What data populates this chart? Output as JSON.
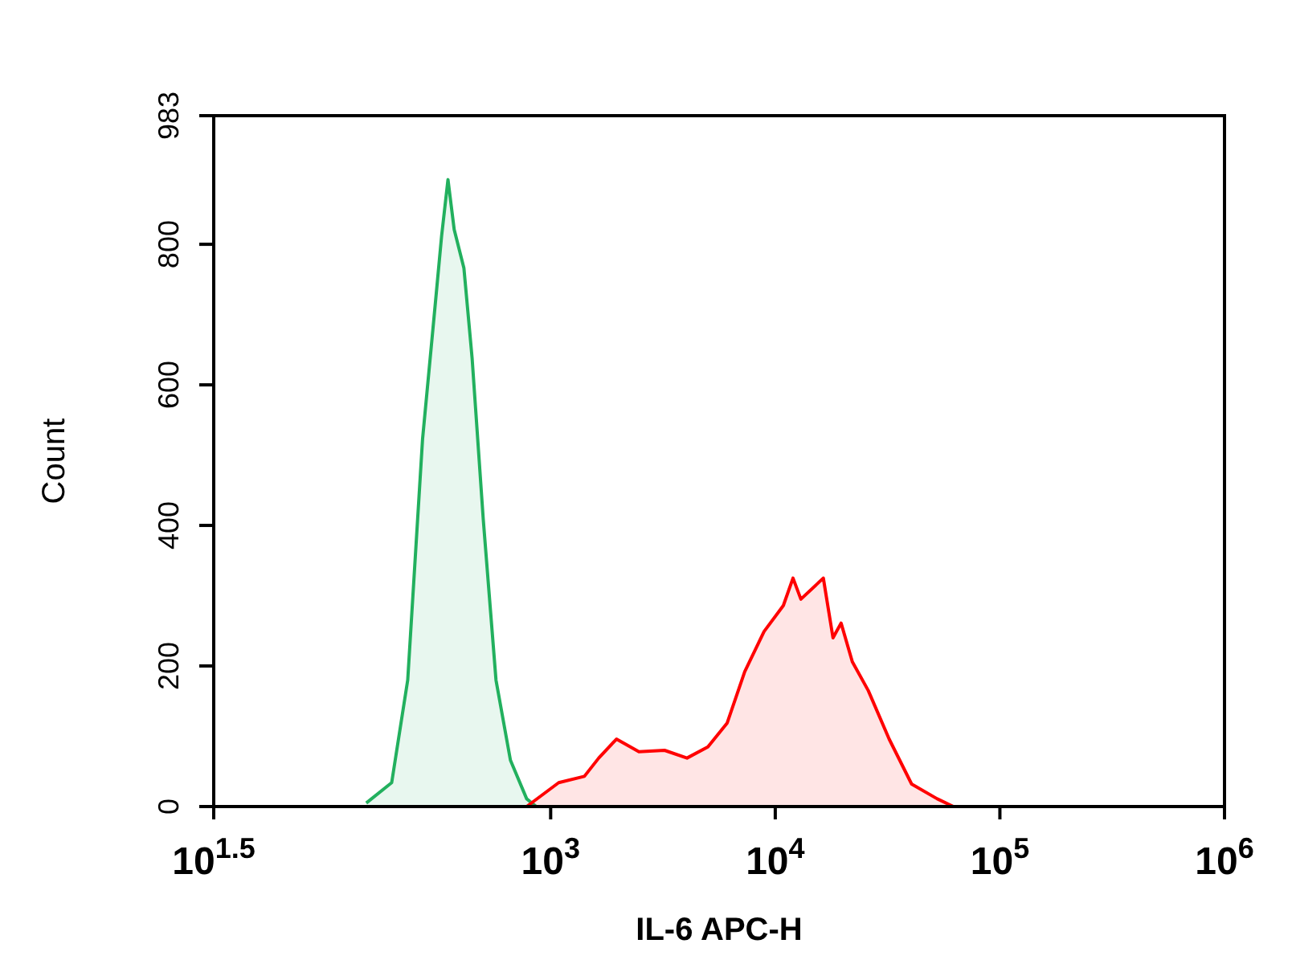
{
  "chart_data": {
    "type": "area",
    "xlabel": "IL-6 APC-H",
    "ylabel": "Count",
    "log": "x",
    "xlim": [
      31.62,
      1000000
    ],
    "ylim": [
      0,
      983
    ],
    "xticks": [
      {
        "value": 31.62,
        "label": "10$^{1.5}$"
      },
      {
        "value": 1000,
        "label": "10$^{3}$"
      },
      {
        "value": 10000,
        "label": "10$^{4}$"
      },
      {
        "value": 100000,
        "label": "10$^{5}$"
      },
      {
        "value": 1000000,
        "label": "10$^{6}$"
      }
    ],
    "yticks": [
      0,
      200,
      400,
      600,
      800,
      983
    ],
    "series": [
      {
        "color": "#22b05e",
        "x": [
          151,
          196,
          231,
          269,
          306,
          327,
          349,
          372,
          411,
          447,
          501,
          571,
          662,
          782,
          863
        ],
        "values": [
          5,
          34,
          180,
          523,
          713,
          812,
          892,
          821,
          766,
          638,
          409,
          180,
          66,
          11,
          0
        ]
      },
      {
        "color": "#ff0000",
        "x": [
          782,
          1086,
          1413,
          1637,
          1963,
          2472,
          3214,
          4046,
          5012,
          6109,
          7311,
          8913,
          10864,
          11995,
          13002,
          16368,
          18072,
          19634,
          22029,
          25942,
          32137,
          40458,
          52602,
          62087
        ],
        "values": [
          0,
          34,
          43,
          69,
          96,
          78,
          80,
          69,
          85,
          119,
          192,
          249,
          286,
          325,
          295,
          325,
          240,
          261,
          206,
          165,
          96,
          32,
          11,
          0
        ]
      }
    ]
  }
}
